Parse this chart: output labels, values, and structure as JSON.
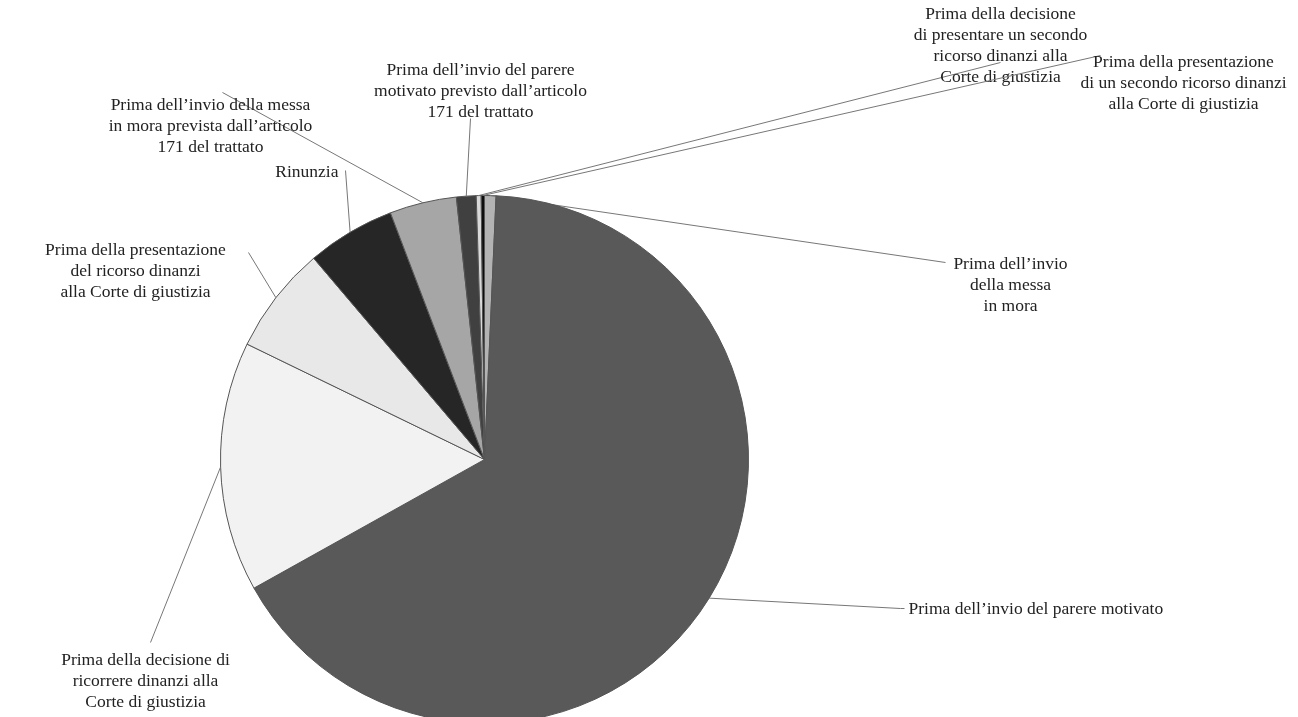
{
  "chart_data": {
    "type": "pie",
    "categories": [
      "Prima dell’invio\ndella messa\nin mora",
      "Prima dell’invio del parere motivato",
      "Prima della decisione di\nricorrere dinanzi alla\nCorte di giustizia",
      "Prima della presentazione\ndel ricorso dinanzi\nalla Corte di giustizia",
      "Rinunzia",
      "Prima dell’invio della messa\nin mora prevista dall’articolo\n171 del trattato",
      "Prima dell’invio del parere\nmotivato previsto dall’articolo\n171 del trattato",
      "Prima della decisione\ndi presentare un secondo\nricorso dinanzi alla\nCorte di giustizia",
      "Prima della presentazione\ndi un secondo ricorso dinanzi\nalla Corte di giustizia"
    ],
    "values": [
      0.7,
      66.2,
      15.3,
      6.6,
      5.4,
      4.1,
      1.2,
      0.3,
      0.2
    ],
    "colors": [
      "#b3b3b3",
      "#595959",
      "#f2f2f2",
      "#e8e8e8",
      "#262626",
      "#a6a6a6",
      "#404040",
      "#d9d9d9",
      "#0d0d0d"
    ]
  }
}
